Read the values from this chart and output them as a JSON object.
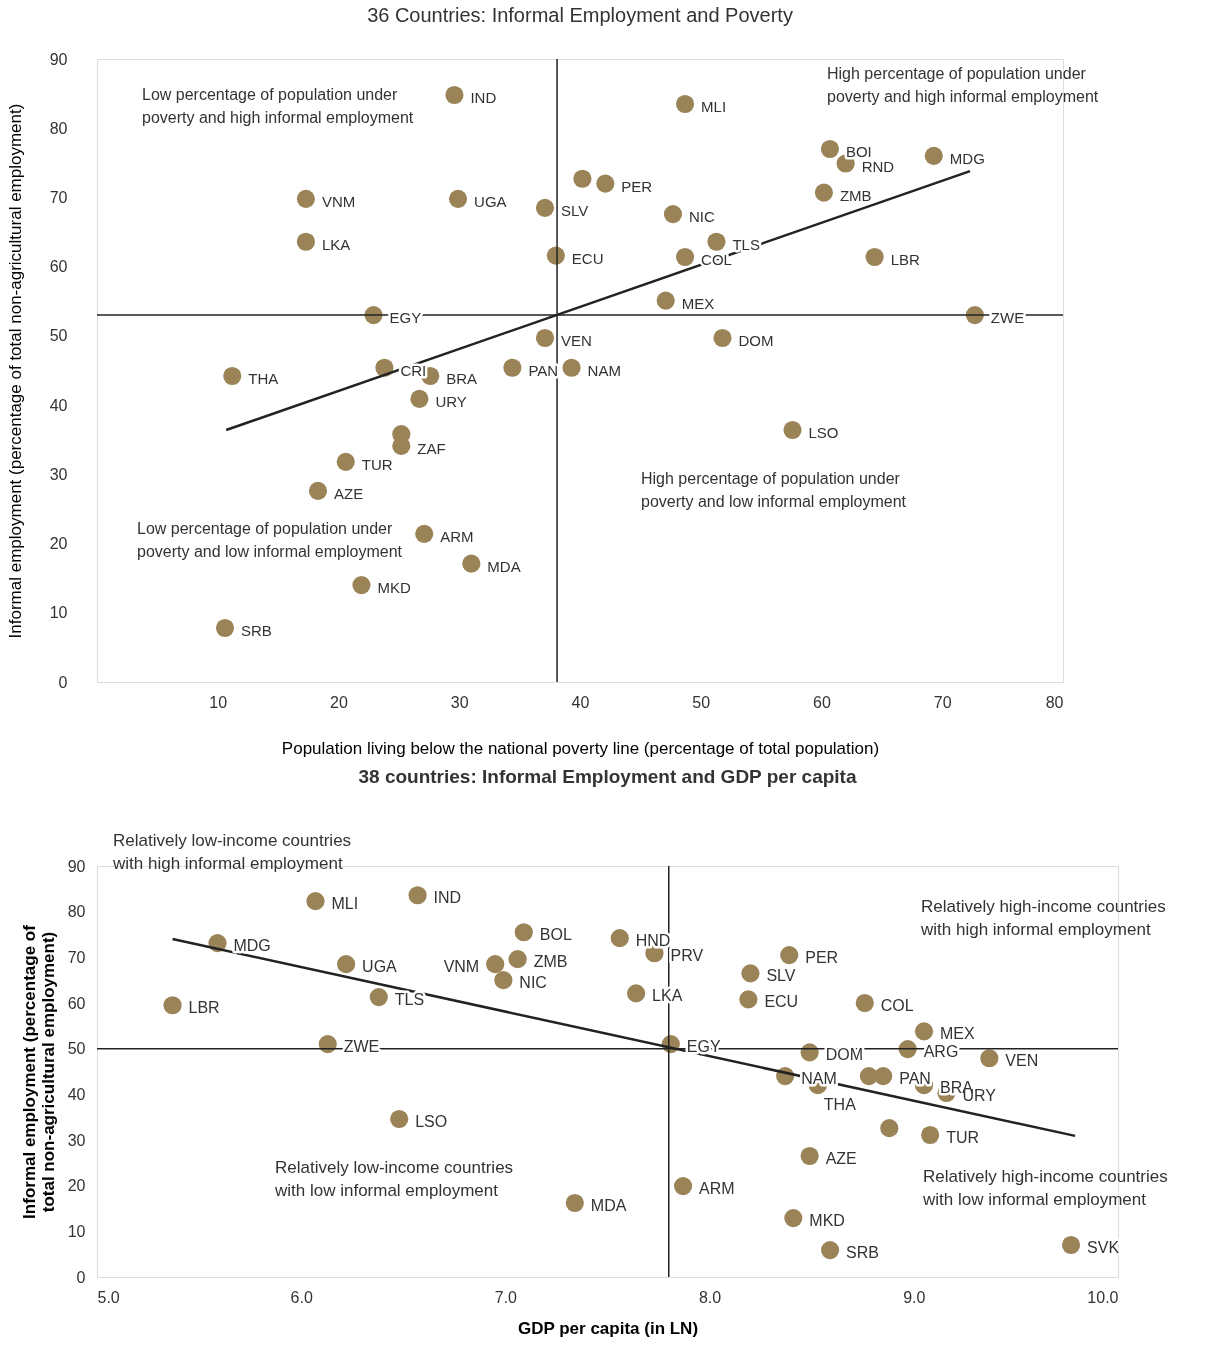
{
  "chart_data": [
    {
      "type": "scatter",
      "title": "36 Countries: Informal Employment and Poverty",
      "xlabel": "Population living below the national poverty line (percentage of total population)",
      "ylabel": "Informal employment (percentage of total non-agricultural employment)",
      "xlim": [
        0,
        80
      ],
      "ylim": [
        0,
        90
      ],
      "xticks": [
        10,
        20,
        30,
        40,
        50,
        60,
        70,
        80
      ],
      "yticks": [
        0,
        10,
        20,
        30,
        40,
        50,
        60,
        70,
        80,
        90
      ],
      "grid": false,
      "series": [
        {
          "marker": "circle",
          "color": "#9b8358",
          "x": [
            29.6,
            48.7,
            60.7,
            62.0,
            69.3,
            60.2,
            17.3,
            29.9,
            37.1,
            40.2,
            42.1,
            47.7,
            51.3,
            48.7,
            38.0,
            17.3,
            64.4,
            47.1,
            22.9,
            72.7,
            51.8,
            37.1,
            11.2,
            23.8,
            27.6,
            34.4,
            39.3,
            26.7,
            57.6,
            25.2,
            25.2,
            20.6,
            18.3,
            27.1,
            31.0,
            21.9,
            10.6
          ],
          "values": [
            84.8,
            83.5,
            77.0,
            74.9,
            76.0,
            70.7,
            69.8,
            69.8,
            68.5,
            72.7,
            72.0,
            67.6,
            63.6,
            61.4,
            61.6,
            63.6,
            61.4,
            55.1,
            53.0,
            53.0,
            49.7,
            49.7,
            44.2,
            45.4,
            44.2,
            45.4,
            45.4,
            40.9,
            36.4,
            35.8,
            34.1,
            31.8,
            27.6,
            21.4,
            17.1,
            14.0,
            7.8
          ],
          "value_labels": [
            "IND",
            "MLI",
            "BOI",
            "RND",
            "MDG",
            "ZMB",
            "VNM",
            "UGA",
            "SLV",
            null,
            "PER",
            "NIC",
            "TLS",
            "COL",
            "ECU",
            "LKA",
            "LBR",
            "MEX",
            "EGY",
            "ZWE",
            "DOM",
            "VEN",
            "THA",
            "CRI",
            "BRA",
            "PAN",
            "NAM",
            "URY",
            "LSO",
            null,
            "ZAF",
            "TUR",
            "AZE",
            "ARM",
            "MDA",
            "MKD",
            "SRB"
          ]
        },
        {
          "type": "line",
          "color": "#222222",
          "line_style": "solid",
          "x": [
            10.7,
            72.3
          ],
          "values": [
            36.4,
            73.8
          ]
        }
      ],
      "ref_lines": [
        {
          "axis": "x",
          "value": 38.1,
          "label": null,
          "color": "#222222"
        },
        {
          "axis": "y",
          "value": 53.0,
          "label": null,
          "color": "#222222"
        }
      ],
      "annotations": [
        "High percentage of population under\npoverty and high informal employment",
        "Low percentage of population under\npoverty and high informal employment",
        "High percentage of population under\npoverty and low informal employment",
        "Low percentage of population under\npoverty and low informal employment"
      ]
    },
    {
      "type": "scatter",
      "title": "38 countries: Informal Employment and GDP per capita",
      "xlabel": "GDP per capita (in LN)",
      "ylabel": "Informal employment (percentage of\ntotal non-agricultural employment)",
      "xlim": [
        5,
        10
      ],
      "ylim": [
        0,
        90
      ],
      "xticks": [
        {
          "value": 5,
          "label": "5.0"
        },
        {
          "value": 6,
          "label": "6.0"
        },
        {
          "value": 7,
          "label": "7.0"
        },
        {
          "value": 8,
          "label": "8.0"
        },
        {
          "value": 9,
          "label": "9.0"
        },
        {
          "value": 10,
          "label": "10.0"
        }
      ],
      "yticks": [
        0,
        10,
        20,
        30,
        40,
        50,
        60,
        70,
        80,
        90
      ],
      "grid": false,
      "series": [
        {
          "marker": "circle",
          "color": "#9b8358",
          "x": [
            6.07,
            6.57,
            5.59,
            6.22,
            5.37,
            6.38,
            6.13,
            6.48,
            7.09,
            6.95,
            7.06,
            6.99,
            7.56,
            7.73,
            7.64,
            8.2,
            8.19,
            8.39,
            8.76,
            9.05,
            8.97,
            9.37,
            7.81,
            8.49,
            8.37,
            8.53,
            8.78,
            8.85,
            9.05,
            9.16,
            9.08,
            8.88,
            8.49,
            7.87,
            7.34,
            8.41,
            8.59,
            9.77
          ],
          "values": [
            82.3,
            83.6,
            73.1,
            68.5,
            59.5,
            61.3,
            51.0,
            34.6,
            75.5,
            68.5,
            69.6,
            65.0,
            74.2,
            70.9,
            62.1,
            66.5,
            60.8,
            70.5,
            60.0,
            53.8,
            49.9,
            47.9,
            51.0,
            49.2,
            44.0,
            42.0,
            44.0,
            44.0,
            42.0,
            40.3,
            31.1,
            32.6,
            26.5,
            19.9,
            16.2,
            12.9,
            5.9,
            7.0
          ],
          "value_labels": [
            "MLI",
            "IND",
            "MDG",
            "UGA",
            "LBR",
            "TLS",
            "ZWE",
            "LSO",
            "BOL",
            "VNM",
            "ZMB",
            "NIC",
            "HND",
            "PRV",
            "LKA",
            "SLV",
            "ECU",
            "PER",
            "COL",
            "MEX",
            "ARG",
            "VEN",
            "EGY",
            "DOM",
            "NAM",
            "THA",
            null,
            "PAN",
            "BRA",
            "URY",
            "TUR",
            null,
            "AZE",
            "ARM",
            "MDA",
            "MKD",
            "SRB",
            "SVK"
          ]
        },
        {
          "type": "line",
          "color": "#222222",
          "line_style": "solid",
          "x": [
            5.37,
            9.79
          ],
          "values": [
            74.0,
            30.9
          ]
        }
      ],
      "ref_lines": [
        {
          "axis": "x",
          "value": 7.8,
          "label": null,
          "color": "#222222"
        },
        {
          "axis": "y",
          "value": 50,
          "label": null,
          "color": "#222222"
        }
      ],
      "annotations": [
        "Relatively low-income countries\nwith high informal employment",
        "Relatively high-income countries\nwith high informal employment",
        "Relatively low-income countries\nwith low informal employment",
        "Relatively high-income countries\nwith low informal employment"
      ]
    }
  ]
}
